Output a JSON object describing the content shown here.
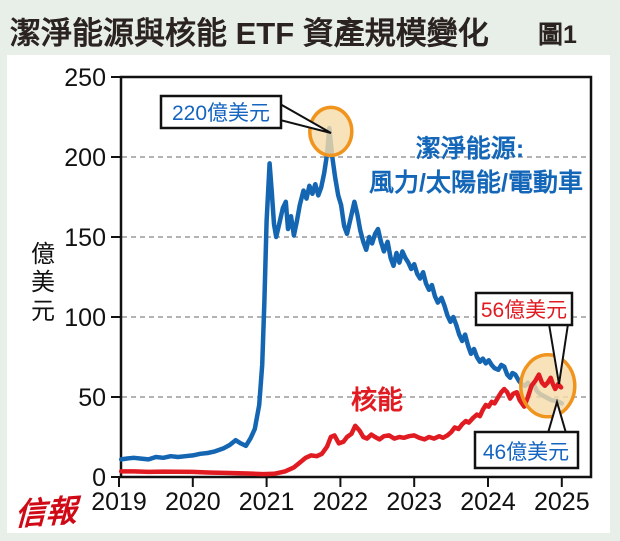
{
  "title": "潔淨能源與核能 ETF 資產規模變化",
  "figure_label": "圖1",
  "logo": "信報",
  "chart_data": {
    "type": "line",
    "title": "潔淨能源與核能 ETF 資產規模變化",
    "xlabel": "",
    "ylabel": "億美元",
    "ylim": [
      0,
      250
    ],
    "xlim": [
      2019,
      2025.4
    ],
    "yticks": [
      250,
      200,
      150,
      100,
      50,
      0
    ],
    "xticks": [
      "2019",
      "2020",
      "2021",
      "2022",
      "2023",
      "2024",
      "2025"
    ],
    "grid": {
      "horizontal_dashed_at": [
        200,
        150,
        100,
        50
      ]
    },
    "legend_position": "inline-labels",
    "series": [
      {
        "name": "潔淨能源: 風力/太陽能/電動車",
        "label_line1": "潔淨能源:",
        "label_line2": "風力/太陽能/電動車",
        "color": "#1566b2",
        "points": [
          [
            2019.03,
            11
          ],
          [
            2019.1,
            11.5
          ],
          [
            2019.2,
            12
          ],
          [
            2019.3,
            11.5
          ],
          [
            2019.4,
            11
          ],
          [
            2019.5,
            12.5
          ],
          [
            2019.6,
            12
          ],
          [
            2019.7,
            13
          ],
          [
            2019.8,
            12.5
          ],
          [
            2019.9,
            13
          ],
          [
            2020.0,
            13.5
          ],
          [
            2020.1,
            14.5
          ],
          [
            2020.2,
            15
          ],
          [
            2020.3,
            16
          ],
          [
            2020.42,
            18
          ],
          [
            2020.5,
            20
          ],
          [
            2020.58,
            23
          ],
          [
            2020.65,
            21
          ],
          [
            2020.72,
            19.5
          ],
          [
            2020.78,
            24
          ],
          [
            2020.84,
            30
          ],
          [
            2020.9,
            45
          ],
          [
            2020.94,
            70
          ],
          [
            2020.97,
            110
          ],
          [
            2021.0,
            160
          ],
          [
            2021.04,
            196
          ],
          [
            2021.07,
            178
          ],
          [
            2021.1,
            158
          ],
          [
            2021.13,
            150
          ],
          [
            2021.18,
            160
          ],
          [
            2021.22,
            168
          ],
          [
            2021.26,
            172
          ],
          [
            2021.29,
            155
          ],
          [
            2021.33,
            163
          ],
          [
            2021.37,
            151
          ],
          [
            2021.41,
            160
          ],
          [
            2021.45,
            170
          ],
          [
            2021.5,
            179
          ],
          [
            2021.54,
            174
          ],
          [
            2021.58,
            182
          ],
          [
            2021.62,
            177
          ],
          [
            2021.66,
            183
          ],
          [
            2021.7,
            176
          ],
          [
            2021.74,
            181
          ],
          [
            2021.78,
            190
          ],
          [
            2021.82,
            202
          ],
          [
            2021.85,
            218
          ],
          [
            2021.89,
            200
          ],
          [
            2021.93,
            187
          ],
          [
            2021.97,
            176
          ],
          [
            2022.01,
            170
          ],
          [
            2022.05,
            157
          ],
          [
            2022.09,
            152
          ],
          [
            2022.15,
            164
          ],
          [
            2022.19,
            172
          ],
          [
            2022.23,
            164
          ],
          [
            2022.27,
            154
          ],
          [
            2022.31,
            147
          ],
          [
            2022.35,
            142
          ],
          [
            2022.39,
            150
          ],
          [
            2022.43,
            146
          ],
          [
            2022.47,
            152
          ],
          [
            2022.51,
            155
          ],
          [
            2022.55,
            147
          ],
          [
            2022.59,
            141
          ],
          [
            2022.64,
            147
          ],
          [
            2022.68,
            137
          ],
          [
            2022.72,
            132
          ],
          [
            2022.76,
            140
          ],
          [
            2022.8,
            134
          ],
          [
            2022.84,
            141
          ],
          [
            2022.88,
            137
          ],
          [
            2022.92,
            134
          ],
          [
            2022.96,
            130
          ],
          [
            2023.0,
            133
          ],
          [
            2023.04,
            127
          ],
          [
            2023.08,
            124
          ],
          [
            2023.12,
            128
          ],
          [
            2023.16,
            121
          ],
          [
            2023.2,
            117
          ],
          [
            2023.24,
            120
          ],
          [
            2023.28,
            113
          ],
          [
            2023.32,
            109
          ],
          [
            2023.37,
            112
          ],
          [
            2023.41,
            107
          ],
          [
            2023.45,
            101
          ],
          [
            2023.49,
            97
          ],
          [
            2023.53,
            100
          ],
          [
            2023.57,
            95
          ],
          [
            2023.61,
            89
          ],
          [
            2023.65,
            85
          ],
          [
            2023.69,
            89
          ],
          [
            2023.73,
            82
          ],
          [
            2023.77,
            77
          ],
          [
            2023.81,
            80
          ],
          [
            2023.85,
            75
          ],
          [
            2023.89,
            72
          ],
          [
            2023.93,
            74
          ],
          [
            2023.97,
            71
          ],
          [
            2024.01,
            73
          ],
          [
            2024.05,
            70
          ],
          [
            2024.09,
            68
          ],
          [
            2024.14,
            67
          ],
          [
            2024.18,
            70
          ],
          [
            2024.22,
            69
          ],
          [
            2024.26,
            64
          ],
          [
            2024.3,
            62
          ],
          [
            2024.33,
            65
          ],
          [
            2024.37,
            64
          ],
          [
            2024.42,
            60
          ],
          [
            2024.46,
            58
          ],
          [
            2024.5,
            57
          ],
          [
            2024.54,
            59
          ],
          [
            2024.58,
            56
          ],
          [
            2024.62,
            58
          ],
          [
            2024.66,
            54
          ],
          [
            2024.7,
            52
          ],
          [
            2024.74,
            51
          ],
          [
            2024.78,
            50
          ],
          [
            2024.82,
            49
          ],
          [
            2024.86,
            48
          ],
          [
            2024.92,
            47.5
          ],
          [
            2024.96,
            47
          ],
          [
            2025.0,
            46
          ]
        ]
      },
      {
        "name": "核能",
        "color": "#e11b22",
        "points": [
          [
            2019.03,
            3.5
          ],
          [
            2019.2,
            3.5
          ],
          [
            2019.4,
            3.2
          ],
          [
            2019.6,
            3.4
          ],
          [
            2019.8,
            3.3
          ],
          [
            2020.0,
            3.2
          ],
          [
            2020.2,
            2.8
          ],
          [
            2020.5,
            2.5
          ],
          [
            2020.75,
            2.2
          ],
          [
            2020.95,
            1.8
          ],
          [
            2021.1,
            2
          ],
          [
            2021.25,
            3.5
          ],
          [
            2021.37,
            6
          ],
          [
            2021.45,
            9
          ],
          [
            2021.53,
            12
          ],
          [
            2021.6,
            13.5
          ],
          [
            2021.68,
            13
          ],
          [
            2021.75,
            14.5
          ],
          [
            2021.82,
            19
          ],
          [
            2021.87,
            25
          ],
          [
            2021.92,
            26
          ],
          [
            2021.98,
            21
          ],
          [
            2022.04,
            22
          ],
          [
            2022.09,
            25
          ],
          [
            2022.15,
            27
          ],
          [
            2022.2,
            32
          ],
          [
            2022.26,
            29
          ],
          [
            2022.31,
            25
          ],
          [
            2022.36,
            24
          ],
          [
            2022.42,
            26.5
          ],
          [
            2022.47,
            25
          ],
          [
            2022.53,
            23.5
          ],
          [
            2022.59,
            25.5
          ],
          [
            2022.66,
            26
          ],
          [
            2022.73,
            24
          ],
          [
            2022.8,
            25
          ],
          [
            2022.86,
            24.5
          ],
          [
            2022.93,
            25.5
          ],
          [
            2023.0,
            26
          ],
          [
            2023.07,
            24.5
          ],
          [
            2023.14,
            23.5
          ],
          [
            2023.2,
            25
          ],
          [
            2023.27,
            24
          ],
          [
            2023.34,
            25.5
          ],
          [
            2023.39,
            24.5
          ],
          [
            2023.45,
            26
          ],
          [
            2023.5,
            28
          ],
          [
            2023.55,
            31
          ],
          [
            2023.6,
            30
          ],
          [
            2023.65,
            33
          ],
          [
            2023.7,
            35
          ],
          [
            2023.74,
            34
          ],
          [
            2023.8,
            37
          ],
          [
            2023.85,
            39
          ],
          [
            2023.89,
            38
          ],
          [
            2023.93,
            42
          ],
          [
            2023.97,
            45
          ],
          [
            2024.01,
            44
          ],
          [
            2024.05,
            47
          ],
          [
            2024.09,
            46
          ],
          [
            2024.14,
            50
          ],
          [
            2024.18,
            53
          ],
          [
            2024.22,
            55
          ],
          [
            2024.26,
            53
          ],
          [
            2024.3,
            49
          ],
          [
            2024.34,
            52
          ],
          [
            2024.39,
            53
          ],
          [
            2024.43,
            48
          ],
          [
            2024.49,
            44
          ],
          [
            2024.54,
            50
          ],
          [
            2024.59,
            57
          ],
          [
            2024.64,
            60
          ],
          [
            2024.69,
            64
          ],
          [
            2024.73,
            59
          ],
          [
            2024.77,
            57
          ],
          [
            2024.81,
            59
          ],
          [
            2024.85,
            62
          ],
          [
            2024.88,
            58
          ],
          [
            2024.91,
            55
          ],
          [
            2024.95,
            58
          ],
          [
            2024.99,
            56
          ]
        ]
      }
    ],
    "annotations": [
      {
        "text": "220億美元",
        "color": "#1565c0",
        "series": "潔淨能源",
        "year": 2021.85,
        "value": 220
      },
      {
        "text": "56億美元",
        "color": "#e11b22",
        "series": "核能",
        "year": 2025.0,
        "value": 56
      },
      {
        "text": "46億美元",
        "color": "#1565c0",
        "series": "潔淨能源",
        "year": 2025.0,
        "value": 46
      }
    ],
    "highlights": [
      {
        "type": "ellipse",
        "year": 2021.87,
        "value": 216,
        "stroke": "#f0941d",
        "fill": "#f6dcaa"
      },
      {
        "type": "ellipse",
        "year": 2024.81,
        "value": 57,
        "stroke": "#f0941d",
        "fill": "#f6dcaa"
      }
    ],
    "colors": {
      "clean_energy": "#1566b2",
      "nuclear": "#e11b22",
      "highlight": "#f0941d"
    }
  }
}
